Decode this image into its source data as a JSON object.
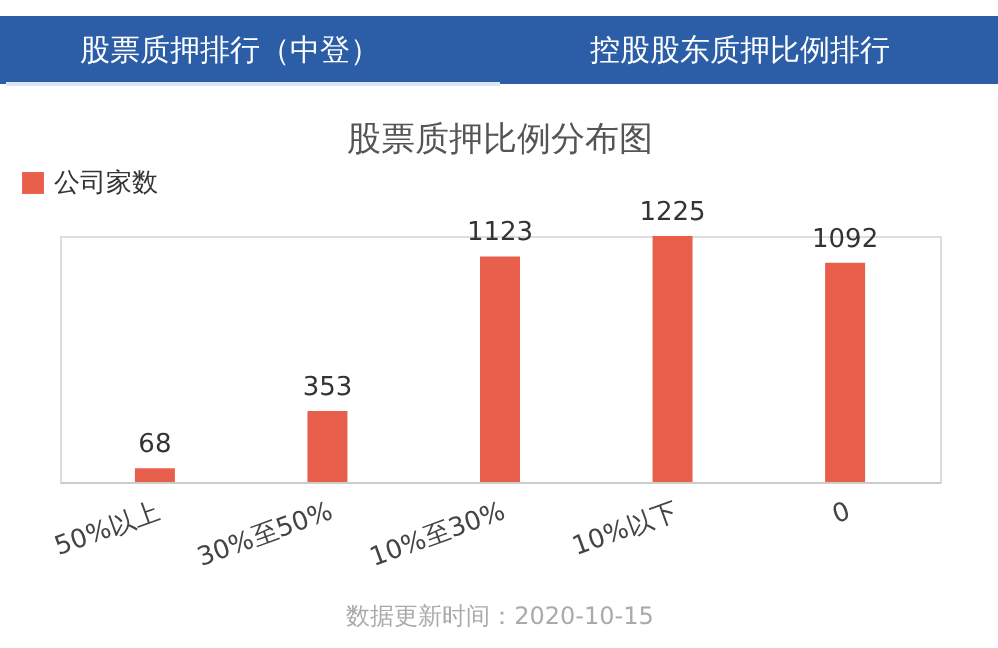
{
  "chart_data": {
    "type": "bar",
    "title": "股票质押比例分布图",
    "categories": [
      "50%以上",
      "30%至50%",
      "10%至30%",
      "10%以下",
      "0"
    ],
    "series": [
      {
        "name": "公司家数",
        "color": "#e8604c",
        "values": [
          68,
          353,
          1123,
          1225,
          1092
        ]
      }
    ],
    "data_labels": true,
    "legend": "top left",
    "grid": false,
    "annotations": [
      "股票质押排行（中登）",
      "控股股东质押比例排行",
      "数据更新时间：2020-10-15"
    ]
  }
}
